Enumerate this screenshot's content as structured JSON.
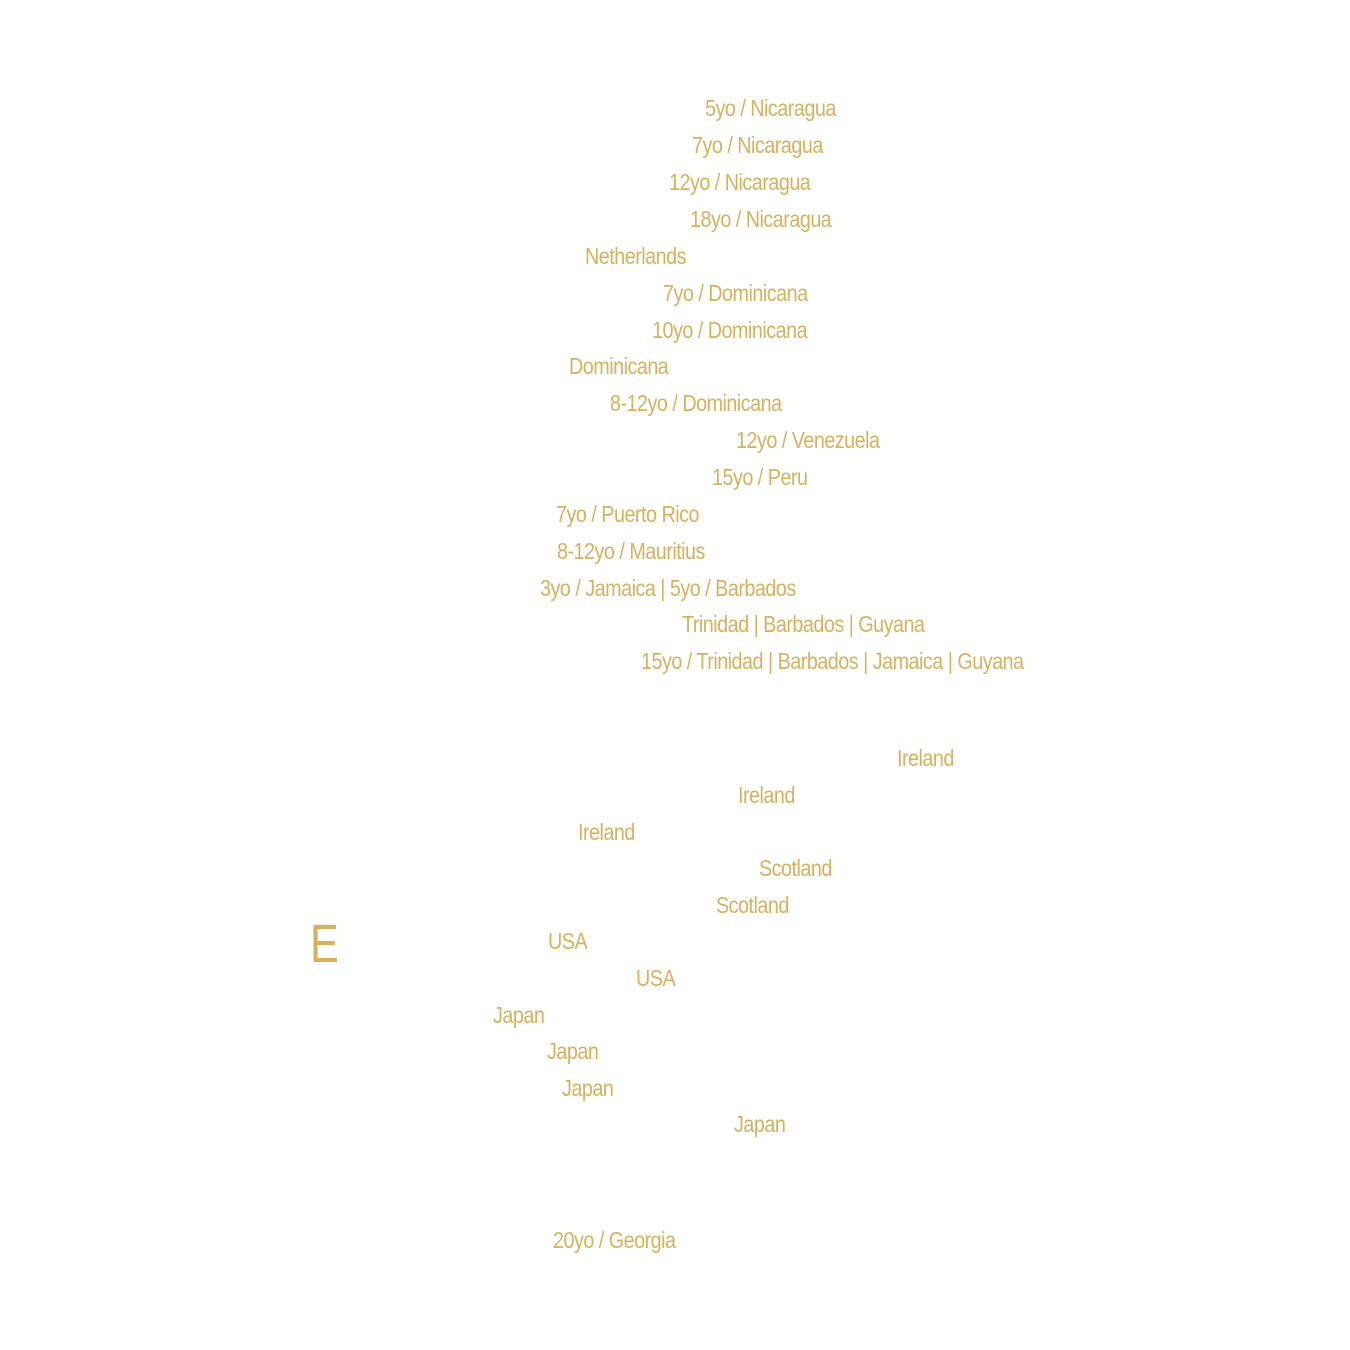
{
  "rum_section": {
    "entries": [
      "5yo / Nicaragua",
      "7yo / Nicaragua",
      "12yo / Nicaragua",
      "18yo / Nicaragua",
      "Netherlands",
      "7yo / Dominicana",
      "10yo / Dominicana",
      "Dominicana",
      "8-12yo / Dominicana",
      "12yo / Venezuela",
      "15yo / Peru",
      "7yo / Puerto Rico",
      "8-12yo / Mauritius",
      "3yo / Jamaica | 5yo / Barbados",
      "Trinidad | Barbados | Guyana",
      "15yo / Trinidad | Barbados | Jamaica | Guyana"
    ]
  },
  "whisky_section": {
    "visible_letter": "E",
    "entries": [
      "Ireland",
      "Ireland",
      "Ireland",
      "Scotland",
      "Scotland",
      "USA",
      "USA",
      "Japan",
      "Japan",
      "Japan",
      "Japan"
    ]
  },
  "brandy_section": {
    "entries": [
      "20yo / Georgia"
    ]
  },
  "colors": {
    "accent_gold": "#d6b25e",
    "background": "#ffffff"
  }
}
